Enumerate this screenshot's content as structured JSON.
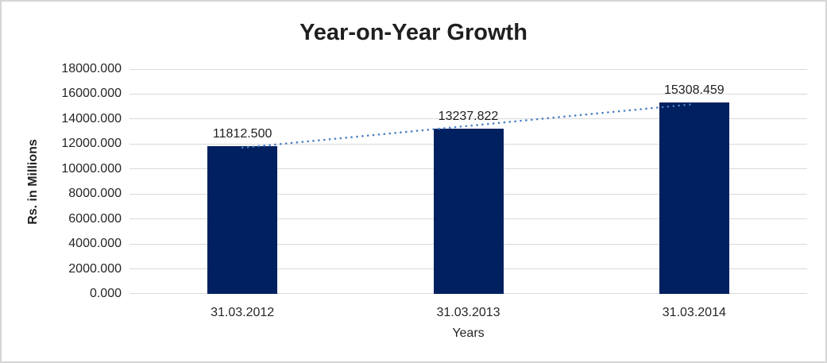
{
  "chart_data": {
    "type": "bar",
    "title": "Year-on-Year Growth",
    "categories": [
      "31.03.2012",
      "31.03.2013",
      "31.03.2014"
    ],
    "values": [
      11812.5,
      13237.822,
      15308.459
    ],
    "data_labels": [
      "11812.500",
      "13237.822",
      "15308.459"
    ],
    "xlabel": "Years",
    "ylabel": "Rs. in Millions",
    "ylim": [
      0,
      18000
    ],
    "ytick_labels": [
      "0.000",
      "2000.000",
      "4000.000",
      "6000.000",
      "8000.000",
      "10000.000",
      "12000.000",
      "14000.000",
      "16000.000",
      "18000.000"
    ],
    "grid": true,
    "legend": false,
    "bar_color": "#002060",
    "gridline_color": "#d9d9d9",
    "frame_border_color": "#d6d6d6",
    "trendline": {
      "type": "linear",
      "style": "dotted",
      "color": "#4a7fc1"
    }
  }
}
